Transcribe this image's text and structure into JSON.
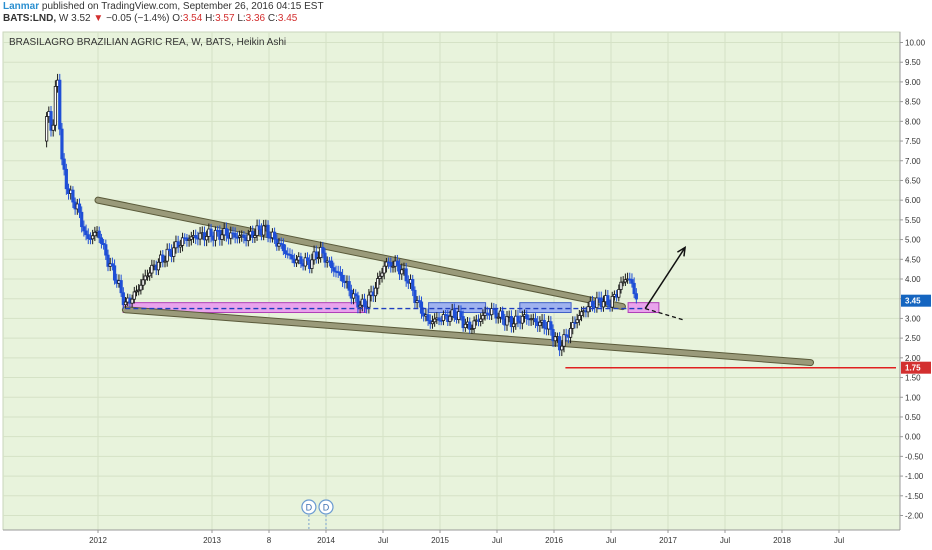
{
  "header": {
    "author": "Lanmar",
    "published": " published on TradingView.com, September 26, 2016 04:15 EST",
    "symbol": "BATS:LND,",
    "interval": "W",
    "last": "3.52",
    "change": "−0.05 (−1.4%)",
    "o_label": "O:",
    "o_value": "3.54",
    "h_label": "H:",
    "h_value": "3.57",
    "l_label": "L:",
    "l_value": "3.36",
    "c_label": "C:",
    "c_value": "3.45"
  },
  "chart_data": {
    "type": "candlestick",
    "title": "BRASILAGRO BRAZILIAN AGRIC REA, W, BATS, Heikin Ashi",
    "ylim": [
      -2.25,
      10.25
    ],
    "y_ticks": [
      "10.00",
      "9.50",
      "9.00",
      "8.50",
      "8.00",
      "7.50",
      "7.00",
      "6.50",
      "6.00",
      "5.50",
      "5.00",
      "4.50",
      "4.00",
      "3.50",
      "3.00",
      "2.50",
      "2.00",
      "1.50",
      "1.00",
      "0.50",
      "0.00",
      "-0.50",
      "-1.00",
      "-1.50",
      "-2.00"
    ],
    "x_ticks": [
      {
        "label": "2012",
        "t": 2012.0
      },
      {
        "label": "2013",
        "t": 2013.0
      },
      {
        "label": "8",
        "t": 2013.5
      },
      {
        "label": "2014",
        "t": 2014.0
      },
      {
        "label": "Jul",
        "t": 2014.5
      },
      {
        "label": "2015",
        "t": 2015.0
      },
      {
        "label": "Jul",
        "t": 2015.5
      },
      {
        "label": "2016",
        "t": 2016.0
      },
      {
        "label": "Jul",
        "t": 2016.5
      },
      {
        "label": "2017",
        "t": 2017.0
      },
      {
        "label": "Jul",
        "t": 2017.5
      },
      {
        "label": "2018",
        "t": 2018.0
      },
      {
        "label": "Jul",
        "t": 2018.5
      }
    ],
    "price_keypoints": [
      [
        2011.53,
        7.5
      ],
      [
        2011.56,
        8.4
      ],
      [
        2011.6,
        7.6
      ],
      [
        2011.64,
        9.4
      ],
      [
        2011.68,
        7.0
      ],
      [
        2011.74,
        6.2
      ],
      [
        2011.82,
        5.8
      ],
      [
        2011.9,
        5.0
      ],
      [
        2012.0,
        5.2
      ],
      [
        2012.08,
        4.5
      ],
      [
        2012.16,
        4.0
      ],
      [
        2012.24,
        3.35
      ],
      [
        2012.32,
        3.6
      ],
      [
        2012.45,
        4.2
      ],
      [
        2012.6,
        4.6
      ],
      [
        2012.75,
        5.0
      ],
      [
        2012.9,
        5.1
      ],
      [
        2013.1,
        5.15
      ],
      [
        2013.3,
        5.05
      ],
      [
        2013.45,
        5.3
      ],
      [
        2013.55,
        5.0
      ],
      [
        2013.7,
        4.5
      ],
      [
        2013.85,
        4.4
      ],
      [
        2013.95,
        4.7
      ],
      [
        2014.05,
        4.3
      ],
      [
        2014.15,
        4.0
      ],
      [
        2014.25,
        3.5
      ],
      [
        2014.33,
        3.3
      ],
      [
        2014.42,
        3.7
      ],
      [
        2014.52,
        4.4
      ],
      [
        2014.62,
        4.35
      ],
      [
        2014.72,
        4.0
      ],
      [
        2014.8,
        3.4
      ],
      [
        2014.9,
        2.9
      ],
      [
        2015.0,
        3.0
      ],
      [
        2015.15,
        3.1
      ],
      [
        2015.25,
        2.75
      ],
      [
        2015.35,
        3.0
      ],
      [
        2015.45,
        3.2
      ],
      [
        2015.55,
        3.0
      ],
      [
        2015.65,
        2.9
      ],
      [
        2015.75,
        3.05
      ],
      [
        2015.85,
        2.9
      ],
      [
        2015.95,
        2.8
      ],
      [
        2016.05,
        2.3
      ],
      [
        2016.12,
        2.6
      ],
      [
        2016.2,
        3.0
      ],
      [
        2016.3,
        3.3
      ],
      [
        2016.4,
        3.45
      ],
      [
        2016.5,
        3.4
      ],
      [
        2016.58,
        3.8
      ],
      [
        2016.63,
        4.05
      ],
      [
        2016.68,
        3.9
      ],
      [
        2016.73,
        3.45
      ]
    ],
    "annotations": {
      "upper_trendline": [
        [
          2012.0,
          6.0
        ],
        [
          2016.6,
          3.3
        ]
      ],
      "lower_trendline": [
        [
          2012.24,
          3.22
        ],
        [
          2018.25,
          1.88
        ]
      ],
      "support_line": {
        "from": 2012.24,
        "to": 2016.8,
        "value": 3.25
      },
      "dotted_projection": [
        [
          2016.8,
          3.25
        ],
        [
          2017.15,
          2.95
        ]
      ],
      "up_arrow": [
        [
          2016.8,
          3.25
        ],
        [
          2017.15,
          4.8
        ]
      ],
      "red_line": {
        "from": 2016.1,
        "to": 2019.0,
        "value": 1.75
      },
      "purple_zones": [
        {
          "from": 2012.22,
          "to": 2014.35,
          "bottom": 3.15,
          "top": 3.4
        },
        {
          "from": 2016.65,
          "to": 2016.92,
          "bottom": 3.15,
          "top": 3.4
        }
      ],
      "blue_zones": [
        {
          "from": 2014.9,
          "to": 2015.4,
          "bottom": 3.15,
          "top": 3.4
        },
        {
          "from": 2015.7,
          "to": 2016.15,
          "bottom": 3.15,
          "top": 3.4
        }
      ],
      "dividend_markers": [
        {
          "label": "D",
          "t": 2013.85
        },
        {
          "label": "D",
          "t": 2014.0
        }
      ]
    },
    "price_labels": [
      {
        "text": "3.45",
        "value": 3.45,
        "color": "#1565c0"
      },
      {
        "text": "1.75",
        "value": 1.75,
        "color": "#d32f2f"
      }
    ],
    "colors": {
      "background": "#e8f3dc",
      "grid": "#d5e2c6",
      "bull": "#1a1a1a",
      "bear": "#1f4fd6",
      "trend_fill": "#9a9a7a",
      "trend_border": "#5a5a3a",
      "purple_zone": "#e9a3ec",
      "purple_zone_border": "#b040b8",
      "blue_zone": "#9fb2ef",
      "blue_zone_border": "#4060c8",
      "support": "#1f3fbf",
      "red": "#e02020"
    }
  }
}
